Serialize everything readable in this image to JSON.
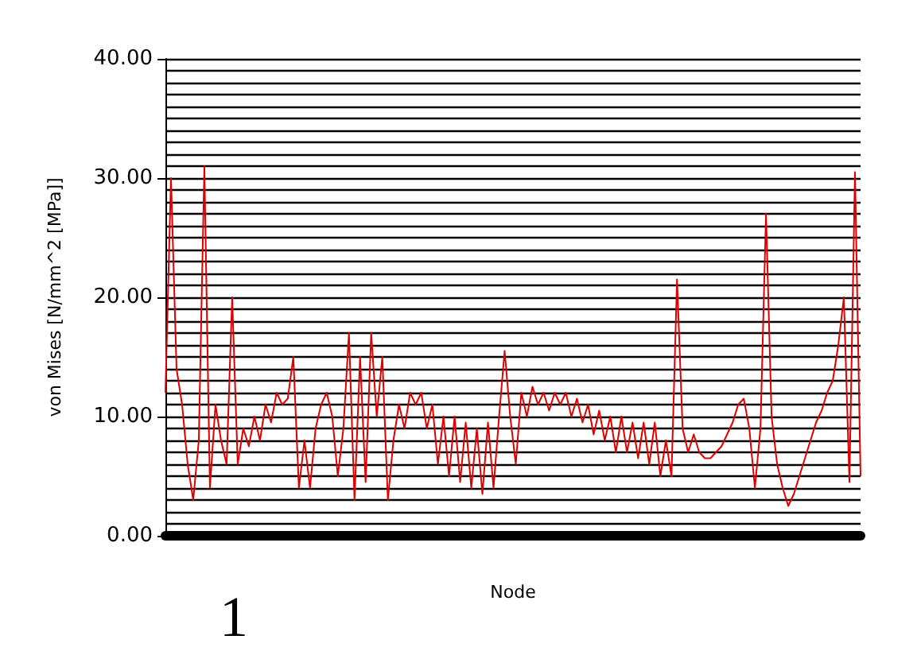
{
  "chart_data": {
    "type": "line",
    "xlabel": "Node",
    "ylabel": "von Mises [N/mm^2 [MPa]]",
    "annotations": [
      "1"
    ],
    "categories": [
      null,
      null,
      null,
      null,
      null,
      null,
      null,
      null,
      null,
      null,
      null,
      null,
      null,
      null,
      null,
      null,
      null,
      null,
      null,
      null,
      null,
      null,
      null,
      null,
      null,
      null,
      null,
      null,
      null,
      null,
      null,
      null,
      null,
      null,
      null,
      null,
      null,
      null,
      null,
      null,
      null,
      null,
      null,
      null,
      null,
      null,
      null,
      null,
      null,
      null,
      null,
      null,
      null,
      null,
      null,
      null,
      null,
      null,
      null,
      null,
      null,
      null,
      null,
      null,
      null,
      null,
      null,
      null,
      null,
      null,
      null,
      null,
      null,
      null,
      null,
      null,
      null,
      null,
      null,
      null,
      null,
      null,
      null,
      null,
      null,
      null,
      null,
      null,
      null,
      null,
      null,
      null,
      null,
      null,
      null,
      null,
      null,
      null,
      null,
      null,
      null,
      null,
      null,
      null,
      null,
      null,
      null,
      null,
      null,
      null,
      null,
      null,
      null,
      null,
      null,
      null,
      null,
      null,
      null,
      null,
      null,
      null,
      null,
      null,
      null,
      null
    ],
    "series": [
      {
        "color": "#e00000",
        "values": [
          12,
          30,
          14,
          11,
          6,
          3,
          8,
          31,
          4,
          11,
          8,
          6,
          20,
          6,
          9,
          7.5,
          10,
          8,
          11,
          9.5,
          12,
          11,
          11.5,
          15,
          4,
          8,
          4,
          9,
          11,
          12,
          10,
          5,
          9,
          17,
          3,
          15,
          4.5,
          17,
          10,
          15,
          3,
          8,
          11,
          9,
          12,
          11,
          12,
          9,
          11,
          6,
          10,
          5,
          10,
          4.5,
          9.5,
          4,
          9,
          3.5,
          9.5,
          4,
          10,
          15.5,
          10,
          6,
          12,
          10,
          12.5,
          11,
          12,
          10.5,
          12,
          11,
          12,
          10,
          11.5,
          9.5,
          11,
          8.5,
          10.5,
          8,
          10,
          7,
          10,
          7,
          9.5,
          6.5,
          9.5,
          6,
          9.5,
          5,
          8,
          5,
          21.5,
          9,
          7,
          8.5,
          7,
          6.5,
          6.5,
          7,
          7.5,
          8.5,
          9.5,
          11,
          11.5,
          9,
          4,
          9,
          27,
          10,
          6,
          4,
          2.5,
          3.5,
          5,
          6.5,
          8,
          9.5,
          10.5,
          12,
          13,
          16,
          20,
          4.5,
          30.5,
          5
        ]
      }
    ],
    "ylim": [
      0,
      40
    ],
    "yticks": [
      {
        "value": 0,
        "label": "0.00"
      },
      {
        "value": 1,
        "label": null
      },
      {
        "value": 2,
        "label": null
      },
      {
        "value": 3,
        "label": null
      },
      {
        "value": 4,
        "label": null
      },
      {
        "value": 5,
        "label": null
      },
      {
        "value": 6,
        "label": null
      },
      {
        "value": 7,
        "label": null
      },
      {
        "value": 8,
        "label": null
      },
      {
        "value": 9,
        "label": null
      },
      {
        "value": 10,
        "label": "10.00"
      },
      {
        "value": 11,
        "label": null
      },
      {
        "value": 12,
        "label": null
      },
      {
        "value": 13,
        "label": null
      },
      {
        "value": 14,
        "label": null
      },
      {
        "value": 15,
        "label": null
      },
      {
        "value": 16,
        "label": null
      },
      {
        "value": 17,
        "label": null
      },
      {
        "value": 18,
        "label": null
      },
      {
        "value": 19,
        "label": null
      },
      {
        "value": 20,
        "label": "20.00"
      },
      {
        "value": 21,
        "label": null
      },
      {
        "value": 22,
        "label": null
      },
      {
        "value": 23,
        "label": null
      },
      {
        "value": 24,
        "label": null
      },
      {
        "value": 25,
        "label": null
      },
      {
        "value": 26,
        "label": null
      },
      {
        "value": 27,
        "label": null
      },
      {
        "value": 28,
        "label": null
      },
      {
        "value": 29,
        "label": null
      },
      {
        "value": 30,
        "label": "30.00"
      },
      {
        "value": 31,
        "label": null
      },
      {
        "value": 32,
        "label": null
      },
      {
        "value": 33,
        "label": null
      },
      {
        "value": 34,
        "label": null
      },
      {
        "value": 35,
        "label": null
      },
      {
        "value": 36,
        "label": null
      },
      {
        "value": 37,
        "label": null
      },
      {
        "value": 38,
        "label": null
      },
      {
        "value": 39,
        "label": null
      },
      {
        "value": 40,
        "label": "40.00"
      }
    ],
    "grid": "y",
    "marker": "none",
    "line_style": "solid"
  }
}
